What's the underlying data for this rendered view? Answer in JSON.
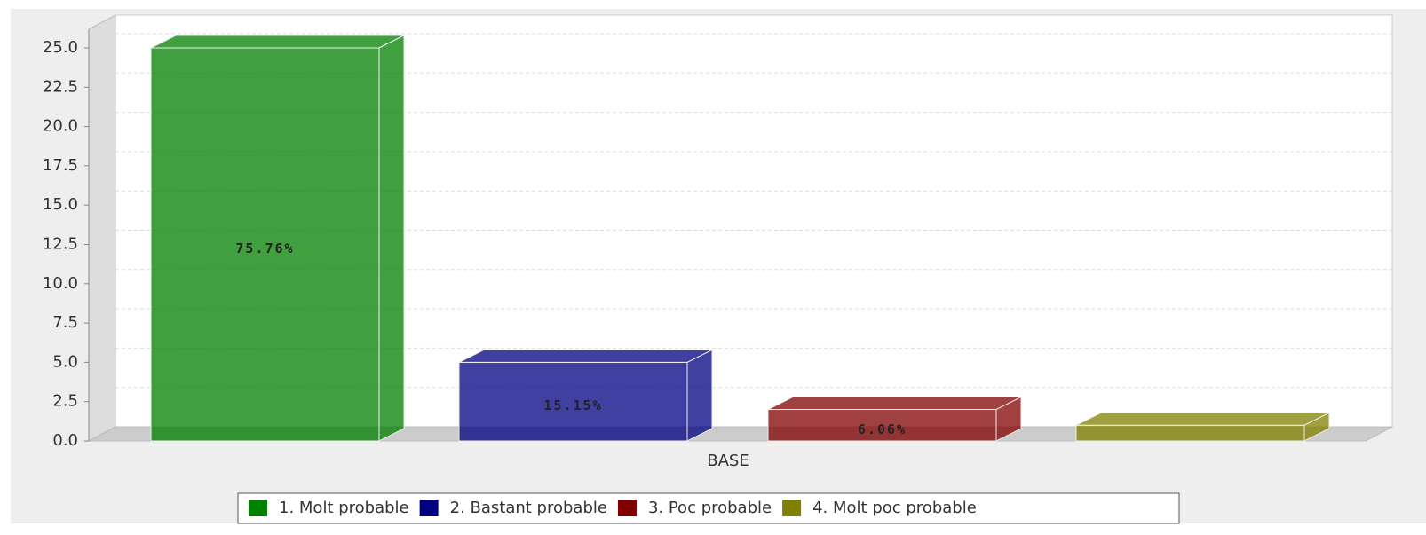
{
  "chart_data": {
    "type": "bar3d",
    "categories": [
      "BASE"
    ],
    "series": [
      {
        "name": "1. Molt probable",
        "color": "#008000",
        "values": [
          25
        ],
        "value_labels": [
          "75.76%"
        ]
      },
      {
        "name": "2. Bastant probable",
        "color": "#000080",
        "values": [
          5
        ],
        "value_labels": [
          "15.15%"
        ]
      },
      {
        "name": "3. Poc probable",
        "color": "#800000",
        "values": [
          2
        ],
        "value_labels": [
          "6.06%"
        ]
      },
      {
        "name": "4. Molt poc probable",
        "color": "#808000",
        "values": [
          1
        ],
        "value_labels": [
          null
        ]
      }
    ],
    "ylim": [
      0,
      25
    ],
    "yticks": [
      {
        "value": 0,
        "label": "0.0"
      },
      2.5,
      {
        "value": 5,
        "label": "5.0"
      },
      7.5,
      {
        "value": 10,
        "label": "10.0"
      },
      12.5,
      {
        "value": 15,
        "label": "15.0"
      },
      17.5,
      {
        "value": 20,
        "label": "20.0"
      },
      22.5,
      {
        "value": 25,
        "label": "25.0"
      }
    ],
    "grid": true,
    "legend": "bottom"
  }
}
